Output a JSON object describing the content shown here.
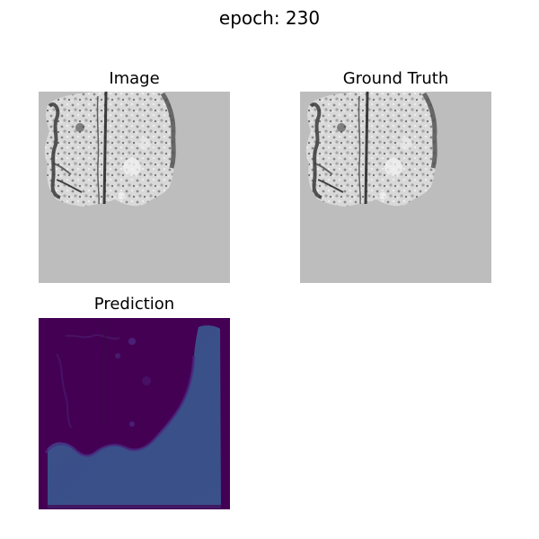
{
  "figure": {
    "suptitle": "epoch: 230"
  },
  "panels": [
    {
      "title": "Image"
    },
    {
      "title": "Ground Truth"
    },
    {
      "title": "Prediction"
    }
  ],
  "colors": {
    "background_gray": "#bdbdbd",
    "tissue_light": "#e4e4e4",
    "tissue_dark": "#2b2b2b",
    "viridis_dark": "#440154",
    "viridis_mid": "#3b528b"
  }
}
